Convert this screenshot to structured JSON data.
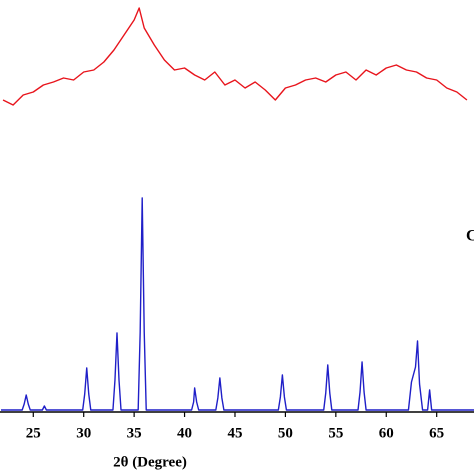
{
  "chart_data": {
    "type": "line",
    "xlabel": "2θ (Degree)",
    "annotation": "C",
    "xlim": [
      21.7,
      68.7
    ],
    "xticks": [
      25,
      30,
      35,
      40,
      45,
      50,
      55,
      60,
      65
    ],
    "ylim": [
      0,
      412
    ],
    "series": [
      {
        "color": "#e8141c",
        "x": [
          22,
          23,
          24,
          25,
          26,
          27,
          28,
          29,
          30,
          31,
          32,
          33,
          34,
          35,
          35.5,
          36,
          37,
          38,
          39,
          40,
          41,
          42,
          43,
          44,
          45,
          46,
          47,
          48,
          49,
          50,
          51,
          52,
          53,
          54,
          55,
          56,
          57,
          58,
          59,
          60,
          61,
          62,
          63,
          64,
          65,
          66,
          67,
          68
        ],
        "values": [
          312,
          307,
          317,
          320,
          327,
          330,
          334,
          332,
          340,
          342,
          350,
          362,
          377,
          392,
          404,
          384,
          367,
          352,
          342,
          344,
          337,
          332,
          340,
          327,
          332,
          324,
          330,
          322,
          312,
          324,
          327,
          332,
          334,
          330,
          337,
          340,
          332,
          342,
          337,
          344,
          347,
          342,
          340,
          334,
          332,
          324,
          320,
          312
        ]
      },
      {
        "color": "#1f1fc8",
        "x": [
          21.8,
          23.9,
          24.1,
          24.3,
          24.5,
          24.7,
          25.9,
          26.1,
          26.3,
          29.9,
          30.1,
          30.3,
          30.5,
          30.7,
          32.9,
          33.1,
          33.3,
          33.5,
          33.7,
          35.4,
          35.6,
          35.8,
          36.0,
          36.2,
          40.7,
          40.9,
          41.0,
          41.2,
          41.4,
          43.1,
          43.3,
          43.5,
          43.7,
          43.9,
          49.3,
          49.5,
          49.7,
          49.9,
          50.1,
          53.8,
          54.0,
          54.2,
          54.4,
          54.6,
          57.2,
          57.4,
          57.6,
          57.8,
          58.0,
          62.2,
          62.5,
          62.9,
          63.1,
          63.3,
          63.6,
          64.1,
          64.3,
          64.5,
          68.7
        ],
        "values": [
          2,
          2,
          8,
          17,
          8,
          2,
          2,
          6,
          2,
          2,
          18,
          44,
          18,
          2,
          2,
          32,
          79,
          32,
          2,
          2,
          80,
          214,
          80,
          2,
          2,
          10,
          24,
          10,
          2,
          2,
          14,
          34,
          14,
          2,
          2,
          15,
          37,
          15,
          2,
          2,
          19,
          47,
          19,
          2,
          2,
          20,
          50,
          20,
          2,
          2,
          30,
          45,
          71,
          28,
          2,
          2,
          22,
          2,
          2
        ]
      }
    ]
  }
}
